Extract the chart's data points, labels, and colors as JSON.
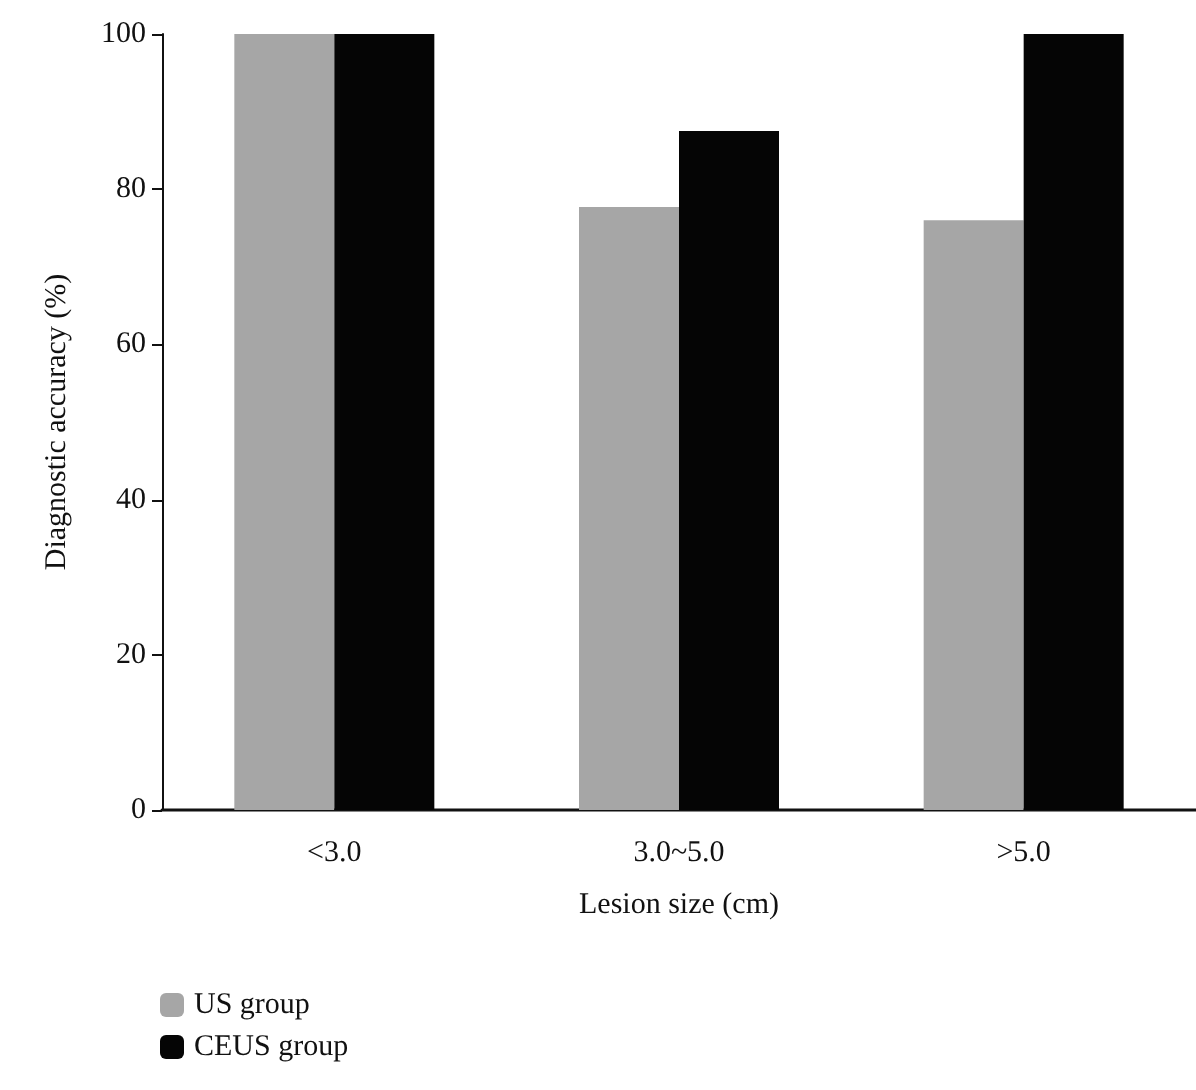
{
  "chart_data": {
    "type": "bar",
    "xlabel": "Lesion size (cm)",
    "ylabel": "Diagnostic accuracy (%)",
    "categories": [
      "<3.0",
      "3.0~5.0",
      ">5.0"
    ],
    "series": [
      {
        "name": "US group",
        "color": "#a6a6a6",
        "values": [
          100,
          77.7,
          76
        ]
      },
      {
        "name": "CEUS group",
        "color": "#050505",
        "values": [
          100,
          87.5,
          100
        ]
      }
    ],
    "ylim": [
      0,
      100
    ],
    "yticks": [
      0,
      20,
      40,
      60,
      80,
      100
    ],
    "grid": false,
    "legend": "bottom left"
  }
}
